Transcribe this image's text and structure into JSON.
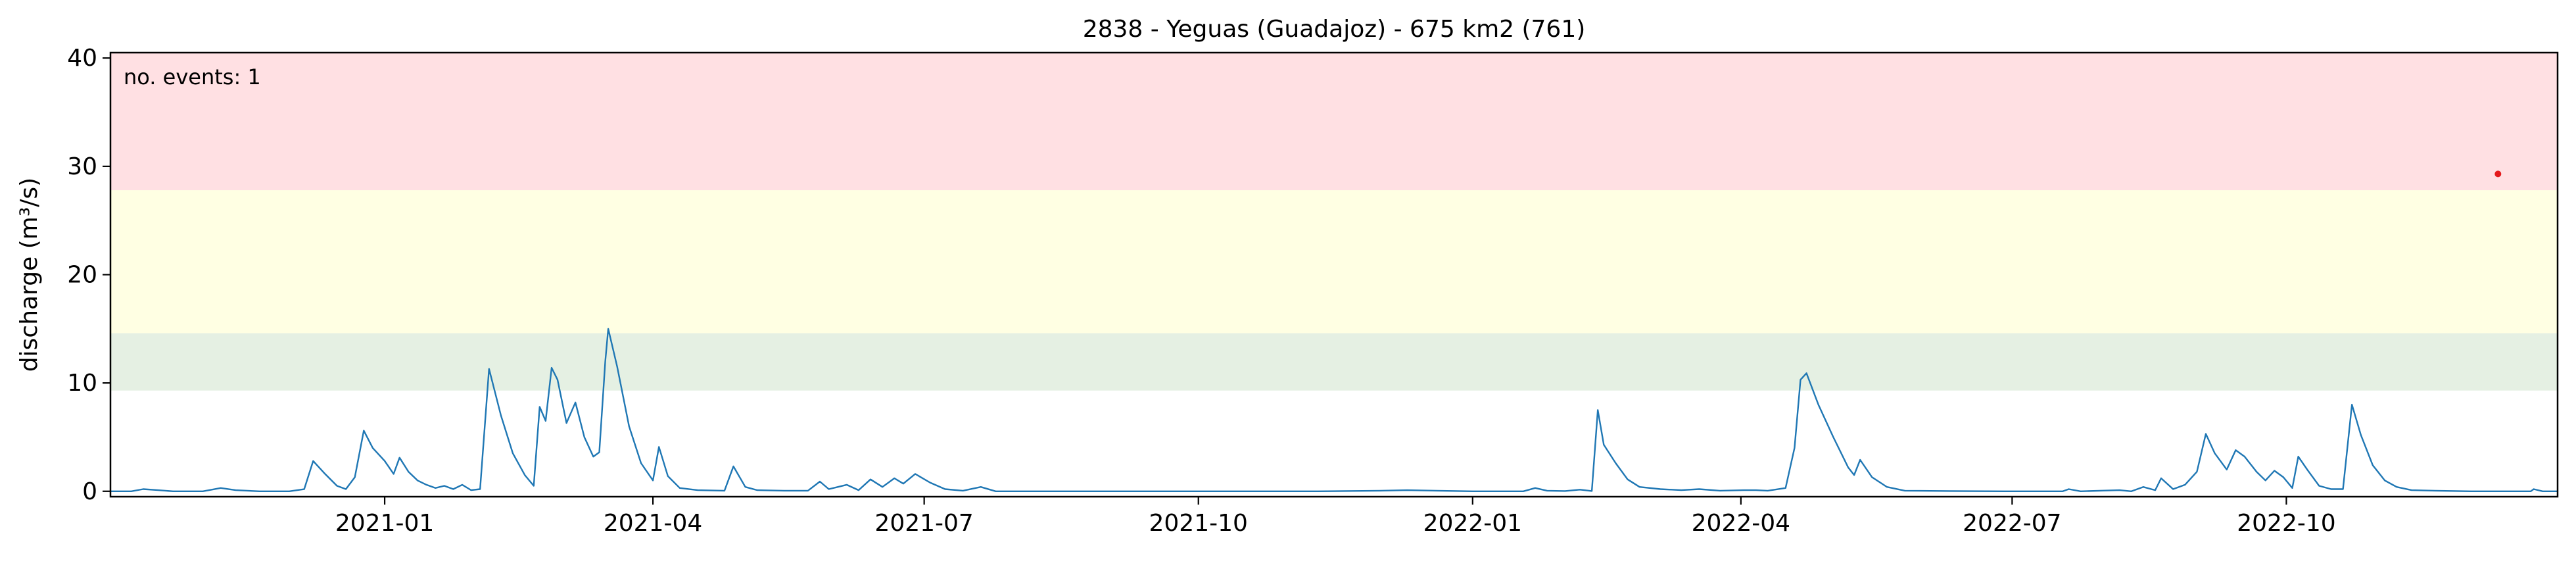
{
  "chart_data": {
    "type": "line",
    "title": "2838 - Yeguas (Guadajoz) - 675 km2 (761)",
    "xlabel": "",
    "ylabel": "discharge (m³/s)",
    "xlim": [
      "2020-10-01",
      "2022-12-31"
    ],
    "ylim": [
      -0.5,
      40.5
    ],
    "yticks": [
      0,
      10,
      20,
      30,
      40
    ],
    "xticks": [
      "2021-01",
      "2021-04",
      "2021-07",
      "2021-10",
      "2022-01",
      "2022-04",
      "2022-07",
      "2022-10"
    ],
    "grid": false,
    "annotation": "no. events: 1",
    "threshold_bands": [
      {
        "from": 9.3,
        "to": 14.6,
        "color": "#e5f0e3"
      },
      {
        "from": 14.6,
        "to": 27.8,
        "color": "#ffffe3"
      },
      {
        "from": 27.8,
        "to": 40.5,
        "color": "#ffe0e3"
      }
    ],
    "series": [
      {
        "color": "#1f77b4",
        "points": [
          [
            "2020-10-01",
            0
          ],
          [
            "2020-10-08",
            0
          ],
          [
            "2020-10-12",
            0.2
          ],
          [
            "2020-10-17",
            0.1
          ],
          [
            "2020-10-22",
            0
          ],
          [
            "2020-11-01",
            0
          ],
          [
            "2020-11-07",
            0.3
          ],
          [
            "2020-11-12",
            0.1
          ],
          [
            "2020-11-20",
            0
          ],
          [
            "2020-11-30",
            0
          ],
          [
            "2020-12-05",
            0.2
          ],
          [
            "2020-12-08",
            2.8
          ],
          [
            "2020-12-12",
            1.6
          ],
          [
            "2020-12-16",
            0.5
          ],
          [
            "2020-12-19",
            0.2
          ],
          [
            "2020-12-22",
            1.3
          ],
          [
            "2020-12-25",
            5.6
          ],
          [
            "2020-12-28",
            4.0
          ],
          [
            "2021-01-01",
            2.8
          ],
          [
            "2021-01-04",
            1.6
          ],
          [
            "2021-01-06",
            3.1
          ],
          [
            "2021-01-09",
            1.8
          ],
          [
            "2021-01-12",
            1.0
          ],
          [
            "2021-01-15",
            0.6
          ],
          [
            "2021-01-18",
            0.3
          ],
          [
            "2021-01-21",
            0.5
          ],
          [
            "2021-01-24",
            0.2
          ],
          [
            "2021-01-27",
            0.6
          ],
          [
            "2021-01-30",
            0.1
          ],
          [
            "2021-02-02",
            0.2
          ],
          [
            "2021-02-05",
            11.3
          ],
          [
            "2021-02-09",
            7.0
          ],
          [
            "2021-02-13",
            3.5
          ],
          [
            "2021-02-17",
            1.5
          ],
          [
            "2021-02-20",
            0.5
          ],
          [
            "2021-02-22",
            7.8
          ],
          [
            "2021-02-24",
            6.5
          ],
          [
            "2021-02-26",
            11.4
          ],
          [
            "2021-02-28",
            10.3
          ],
          [
            "2021-03-03",
            6.3
          ],
          [
            "2021-03-06",
            8.2
          ],
          [
            "2021-03-09",
            5.0
          ],
          [
            "2021-03-12",
            3.2
          ],
          [
            "2021-03-14",
            3.6
          ],
          [
            "2021-03-16",
            12.0
          ],
          [
            "2021-03-17",
            15.0
          ],
          [
            "2021-03-20",
            11.5
          ],
          [
            "2021-03-24",
            6.0
          ],
          [
            "2021-03-28",
            2.6
          ],
          [
            "2021-04-01",
            1.0
          ],
          [
            "2021-04-03",
            4.1
          ],
          [
            "2021-04-06",
            1.4
          ],
          [
            "2021-04-10",
            0.3
          ],
          [
            "2021-04-16",
            0.1
          ],
          [
            "2021-04-25",
            0.05
          ],
          [
            "2021-04-28",
            2.3
          ],
          [
            "2021-05-02",
            0.4
          ],
          [
            "2021-05-06",
            0.1
          ],
          [
            "2021-05-15",
            0.05
          ],
          [
            "2021-05-23",
            0.05
          ],
          [
            "2021-05-27",
            0.9
          ],
          [
            "2021-05-30",
            0.2
          ],
          [
            "2021-06-05",
            0.6
          ],
          [
            "2021-06-09",
            0.1
          ],
          [
            "2021-06-13",
            1.1
          ],
          [
            "2021-06-17",
            0.4
          ],
          [
            "2021-06-21",
            1.2
          ],
          [
            "2021-06-24",
            0.7
          ],
          [
            "2021-06-28",
            1.6
          ],
          [
            "2021-07-03",
            0.8
          ],
          [
            "2021-07-08",
            0.2
          ],
          [
            "2021-07-14",
            0.05
          ],
          [
            "2021-07-20",
            0.4
          ],
          [
            "2021-07-25",
            0
          ],
          [
            "2021-08-15",
            0
          ],
          [
            "2021-09-15",
            0
          ],
          [
            "2021-10-20",
            0
          ],
          [
            "2021-11-10",
            0
          ],
          [
            "2021-12-01",
            0.05
          ],
          [
            "2021-12-10",
            0.1
          ],
          [
            "2021-12-20",
            0.05
          ],
          [
            "2022-01-01",
            0
          ],
          [
            "2022-01-18",
            0
          ],
          [
            "2022-01-22",
            0.3
          ],
          [
            "2022-01-26",
            0.05
          ],
          [
            "2022-02-01",
            0.02
          ],
          [
            "2022-02-06",
            0.15
          ],
          [
            "2022-02-10",
            0.02
          ],
          [
            "2022-02-12",
            7.5
          ],
          [
            "2022-02-14",
            4.3
          ],
          [
            "2022-02-18",
            2.6
          ],
          [
            "2022-02-22",
            1.1
          ],
          [
            "2022-02-26",
            0.4
          ],
          [
            "2022-03-05",
            0.2
          ],
          [
            "2022-03-12",
            0.1
          ],
          [
            "2022-03-18",
            0.2
          ],
          [
            "2022-03-25",
            0.05
          ],
          [
            "2022-04-02",
            0.1
          ],
          [
            "2022-04-06",
            0.1
          ],
          [
            "2022-04-10",
            0.05
          ],
          [
            "2022-04-16",
            0.3
          ],
          [
            "2022-04-19",
            4.0
          ],
          [
            "2022-04-21",
            10.3
          ],
          [
            "2022-04-23",
            10.9
          ],
          [
            "2022-04-27",
            8.0
          ],
          [
            "2022-05-02",
            5.0
          ],
          [
            "2022-05-07",
            2.2
          ],
          [
            "2022-05-09",
            1.5
          ],
          [
            "2022-05-11",
            2.9
          ],
          [
            "2022-05-15",
            1.3
          ],
          [
            "2022-05-20",
            0.4
          ],
          [
            "2022-05-26",
            0.05
          ],
          [
            "2022-06-10",
            0.02
          ],
          [
            "2022-06-30",
            0
          ],
          [
            "2022-07-18",
            0
          ],
          [
            "2022-07-20",
            0.2
          ],
          [
            "2022-07-24",
            0
          ],
          [
            "2022-08-06",
            0.1
          ],
          [
            "2022-08-10",
            0
          ],
          [
            "2022-08-14",
            0.4
          ],
          [
            "2022-08-18",
            0.1
          ],
          [
            "2022-08-20",
            1.2
          ],
          [
            "2022-08-24",
            0.2
          ],
          [
            "2022-08-28",
            0.6
          ],
          [
            "2022-09-01",
            1.8
          ],
          [
            "2022-09-04",
            5.3
          ],
          [
            "2022-09-07",
            3.5
          ],
          [
            "2022-09-11",
            2.0
          ],
          [
            "2022-09-14",
            3.8
          ],
          [
            "2022-09-17",
            3.2
          ],
          [
            "2022-09-21",
            1.8
          ],
          [
            "2022-09-24",
            1.0
          ],
          [
            "2022-09-27",
            1.9
          ],
          [
            "2022-09-30",
            1.3
          ],
          [
            "2022-10-03",
            0.3
          ],
          [
            "2022-10-05",
            3.2
          ],
          [
            "2022-10-08",
            2.0
          ],
          [
            "2022-10-12",
            0.5
          ],
          [
            "2022-10-16",
            0.2
          ],
          [
            "2022-10-20",
            0.2
          ],
          [
            "2022-10-23",
            8.0
          ],
          [
            "2022-10-26",
            5.2
          ],
          [
            "2022-10-30",
            2.4
          ],
          [
            "2022-11-03",
            1.0
          ],
          [
            "2022-11-07",
            0.4
          ],
          [
            "2022-11-12",
            0.1
          ],
          [
            "2022-11-20",
            0.05
          ],
          [
            "2022-12-02",
            0
          ],
          [
            "2022-12-22",
            0
          ],
          [
            "2022-12-23",
            0.2
          ],
          [
            "2022-12-26",
            0
          ],
          [
            "2022-12-31",
            0
          ]
        ]
      }
    ],
    "events": [
      {
        "x": "2022-12-11",
        "y": 29.3,
        "color": "#e41a1c"
      }
    ]
  }
}
